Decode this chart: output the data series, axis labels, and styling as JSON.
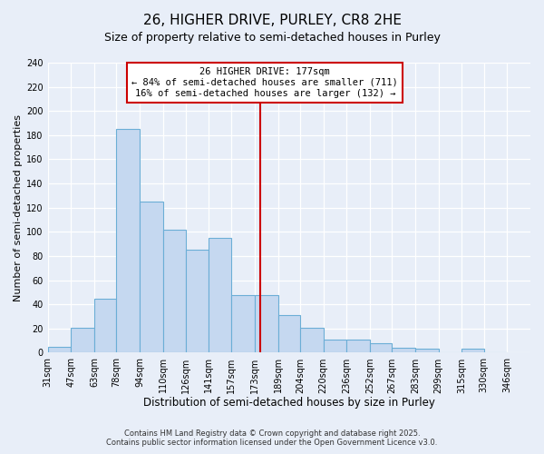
{
  "title": "26, HIGHER DRIVE, PURLEY, CR8 2HE",
  "subtitle": "Size of property relative to semi-detached houses in Purley",
  "xlabel": "Distribution of semi-detached houses by size in Purley",
  "ylabel": "Number of semi-detached properties",
  "bin_labels": [
    "31sqm",
    "47sqm",
    "63sqm",
    "78sqm",
    "94sqm",
    "110sqm",
    "126sqm",
    "141sqm",
    "157sqm",
    "173sqm",
    "189sqm",
    "204sqm",
    "220sqm",
    "236sqm",
    "252sqm",
    "267sqm",
    "283sqm",
    "299sqm",
    "315sqm",
    "330sqm",
    "346sqm"
  ],
  "bin_edges": [
    31,
    47,
    63,
    78,
    94,
    110,
    126,
    141,
    157,
    173,
    189,
    204,
    220,
    236,
    252,
    267,
    283,
    299,
    315,
    330,
    346
  ],
  "bar_heights": [
    5,
    21,
    45,
    185,
    125,
    102,
    85,
    95,
    48,
    48,
    31,
    21,
    11,
    11,
    8,
    4,
    3,
    0,
    3,
    0
  ],
  "bar_color": "#c5d8f0",
  "bar_edge_color": "#6baed6",
  "vline_x": 177,
  "vline_color": "#cc0000",
  "annotation_title": "26 HIGHER DRIVE: 177sqm",
  "annotation_line1": "← 84% of semi-detached houses are smaller (711)",
  "annotation_line2": "16% of semi-detached houses are larger (132) →",
  "annotation_box_color": "#ffffff",
  "annotation_box_edge": "#cc0000",
  "ylim": [
    0,
    240
  ],
  "yticks": [
    0,
    20,
    40,
    60,
    80,
    100,
    120,
    140,
    160,
    180,
    200,
    220,
    240
  ],
  "background_color": "#e8eef8",
  "grid_color": "#ffffff",
  "footer_line1": "Contains HM Land Registry data © Crown copyright and database right 2025.",
  "footer_line2": "Contains public sector information licensed under the Open Government Licence v3.0.",
  "title_fontsize": 11,
  "subtitle_fontsize": 9,
  "xlabel_fontsize": 8.5,
  "ylabel_fontsize": 8,
  "tick_fontsize": 7,
  "annotation_fontsize": 7.5,
  "footer_fontsize": 6
}
